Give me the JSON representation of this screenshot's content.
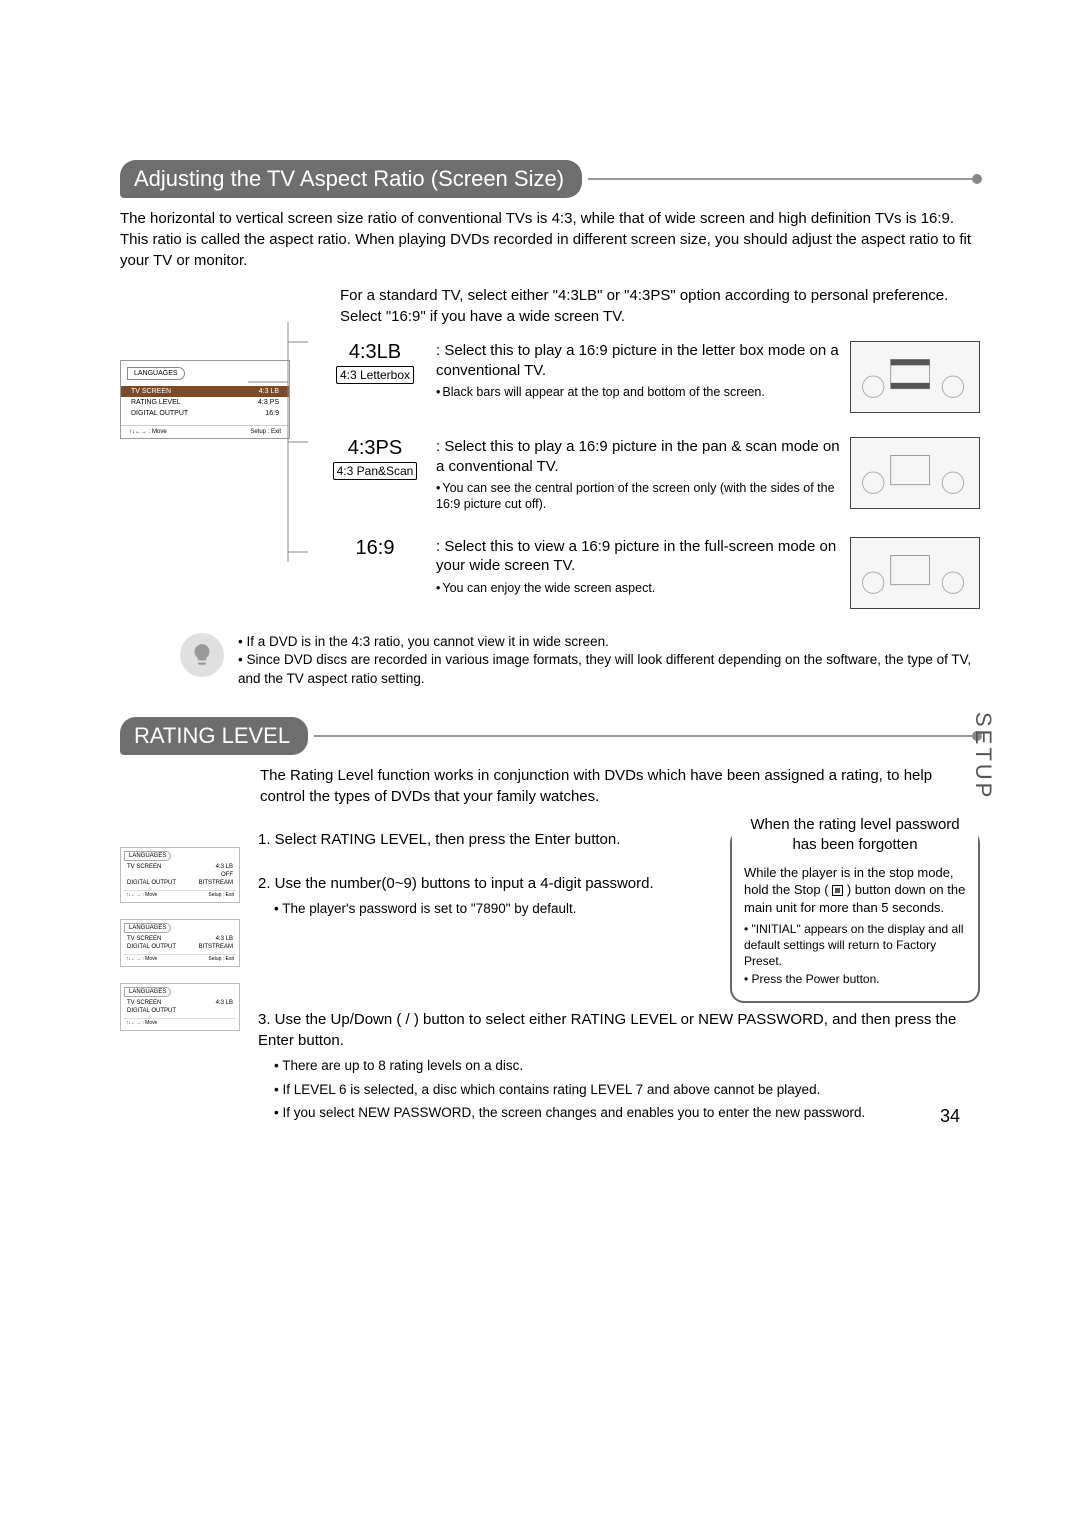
{
  "section1": {
    "title": "Adjusting the TV Aspect Ratio (Screen Size)",
    "intro": "The horizontal to vertical screen size ratio of conventional TVs is 4:3, while that of wide screen and high definition TVs is 16:9. This ratio is called the aspect ratio. When playing DVDs recorded in different screen size, you should adjust the aspect ratio to fit your TV or monitor.",
    "intro_sub": "For a standard TV, select either \"4:3LB\" or \"4:3PS\" option according to personal preference. Select \"16:9\" if you have a wide screen TV.",
    "options": [
      {
        "label": "4:3LB",
        "sublabel": "4:3 Letterbox",
        "desc": "Select this to play a 16:9 picture in the letter box mode on a conventional TV.",
        "note": "Black bars will appear at the top and bottom of the screen."
      },
      {
        "label": "4:3PS",
        "sublabel": "4:3 Pan&Scan",
        "desc": "Select this to play a 16:9 picture in the pan & scan mode on a conventional TV.",
        "note": "You can see the central portion of the screen only (with the sides of the 16:9 picture cut off)."
      },
      {
        "label": "16:9",
        "sublabel": "",
        "desc": "Select this to view a 16:9 picture in the full-screen mode on your wide screen TV.",
        "note": "You can enjoy the wide screen aspect."
      }
    ],
    "menu": {
      "tab": "LANGUAGES",
      "rows": [
        [
          "TV SCREEN",
          "4:3 LB"
        ],
        [
          "RATING LEVEL",
          "4:3 PS"
        ],
        [
          "DIGITAL OUTPUT",
          "16:9"
        ]
      ],
      "foot_left": "↑↓←→ : Move",
      "foot_right": "Setup : Exit"
    },
    "notes": [
      "If a DVD is in the 4:3 ratio, you cannot view it in wide screen.",
      "Since DVD discs are recorded in various image formats, they will look different depending on the software, the type of TV, and the TV aspect ratio setting."
    ]
  },
  "section2": {
    "title": "RATING LEVEL",
    "intro": "The Rating Level function works in conjunction with DVDs which have been assigned a rating, to help control the types of DVDs that your family watches.",
    "steps": {
      "s1": "1. Select RATING LEVEL, then press the Enter button.",
      "s2": "2. Use the number(0~9) buttons to input a 4-digit password.",
      "s2_sub": "The player's password is set to \"7890\" by default.",
      "s3": "3. Use the Up/Down (     /     ) button to select either RATING LEVEL or NEW PASSWORD, and then press the Enter button.",
      "s3_subs": [
        "There are up to 8 rating levels on a disc.",
        "If LEVEL 6 is selected, a disc which contains rating LEVEL 7 and above cannot be played.",
        "If you select NEW PASSWORD, the screen changes and enables you to enter the new password."
      ]
    },
    "callout": {
      "title": "When the rating level password has been forgotten",
      "body1": "While the player is in the stop mode, hold the Stop (",
      "body2": ") button down on the main unit for more than 5 seconds.",
      "items": [
        "\"INITIAL\" appears on the display and all default settings will return to Factory Preset.",
        "Press the Power button."
      ]
    },
    "mini_menus": [
      {
        "tab": "LANGUAGES",
        "rows": [
          [
            "TV SCREEN",
            "4:3 LB"
          ],
          [
            "",
            "OFF"
          ],
          [
            "DIGITAL OUTPUT",
            "BITSTREAM"
          ]
        ],
        "foot": [
          "↑↓←→ : Move",
          "Setup : Exit"
        ]
      },
      {
        "tab": "LANGUAGES",
        "rows": [
          [
            "TV SCREEN",
            "4:3 LB"
          ],
          [
            "DIGITAL OUTPUT",
            "BITSTREAM"
          ]
        ],
        "foot": [
          "↑↓←→ : Move",
          "Setup : Exit"
        ]
      },
      {
        "tab": "LANGUAGES",
        "rows": [
          [
            "TV SCREEN",
            "4:3 LB"
          ],
          [
            "DIGITAL OUTPUT",
            ""
          ]
        ],
        "foot": [
          "↑↓←→ : Move",
          ""
        ]
      }
    ]
  },
  "side_tab": "SETUP",
  "page_number": "34",
  "colors": {
    "pill_bg": "#6e6e6e",
    "pill_fg": "#ffffff",
    "line": "#999999",
    "highlight_bg": "#7a4a2a"
  }
}
